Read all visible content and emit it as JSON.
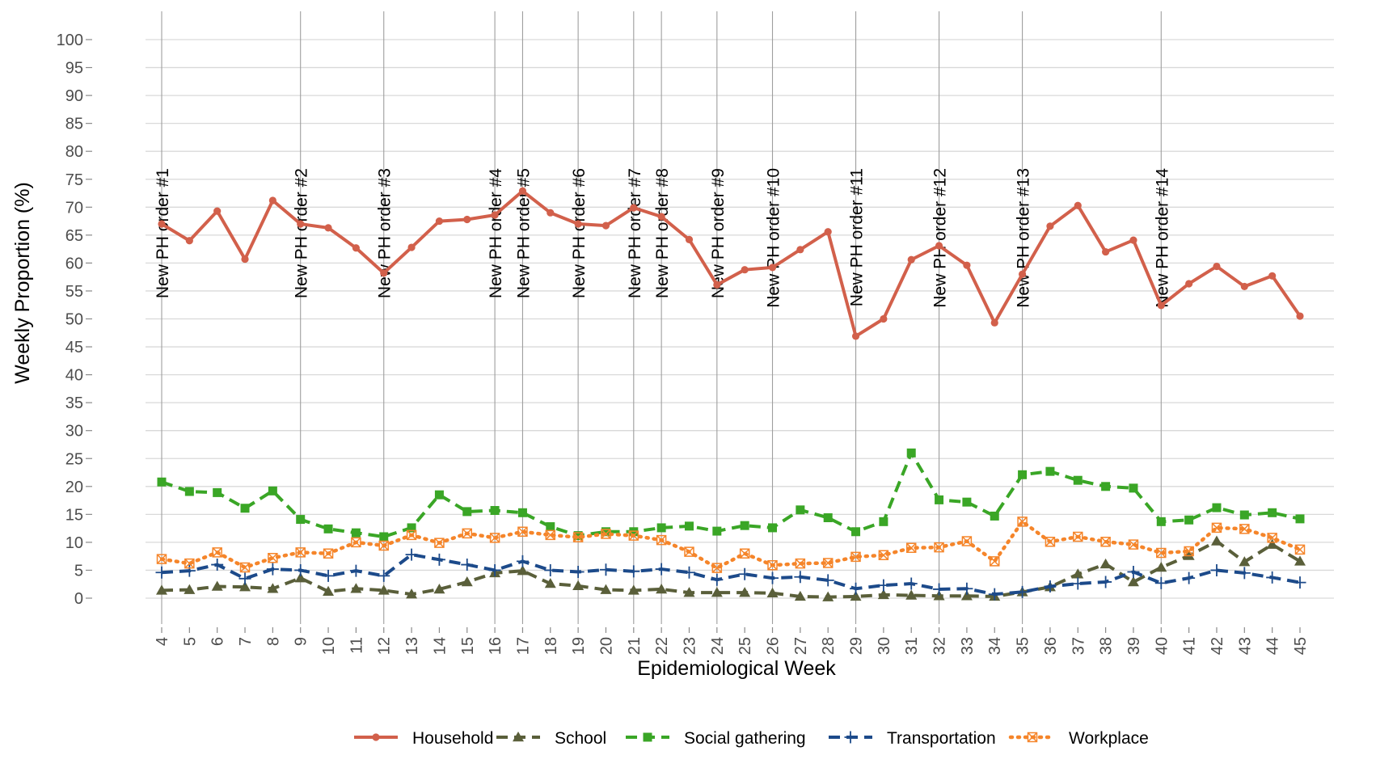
{
  "chart_data": {
    "type": "line",
    "title": "",
    "xlabel": "Epidemiological Week",
    "ylabel": "Weekly Proportion (%)",
    "x": [
      4,
      5,
      6,
      7,
      8,
      9,
      10,
      11,
      12,
      13,
      14,
      15,
      16,
      17,
      18,
      19,
      20,
      21,
      22,
      23,
      24,
      25,
      26,
      27,
      28,
      29,
      30,
      31,
      32,
      33,
      34,
      35,
      36,
      37,
      38,
      39,
      40,
      41,
      42,
      43,
      44,
      45
    ],
    "xlim": [
      4,
      45
    ],
    "ylim": [
      0,
      100
    ],
    "yticks": [
      0,
      5,
      10,
      15,
      20,
      25,
      30,
      35,
      40,
      45,
      50,
      55,
      60,
      65,
      70,
      75,
      80,
      85,
      90,
      95,
      100
    ],
    "grid": true,
    "legend_position": "bottom",
    "series": [
      {
        "name": "Household",
        "color": "#d2604b",
        "line_style": "solid",
        "marker": "circle",
        "values": [
          67,
          64,
          69.3,
          60.7,
          71.2,
          67,
          66.3,
          62.7,
          58.2,
          62.8,
          67.5,
          67.8,
          68.6,
          72.9,
          69,
          67,
          66.7,
          69.9,
          68.3,
          64.2,
          56.1,
          58.8,
          59.2,
          62.4,
          65.6,
          46.9,
          50,
          60.6,
          63.1,
          59.6,
          49.3,
          58,
          66.6,
          70.3,
          62,
          64.1,
          52.4,
          56.3,
          59.4,
          55.8,
          57.7,
          50.5
        ]
      },
      {
        "name": "School",
        "color": "#5a5f3a",
        "line_style": "dashed",
        "marker": "triangle",
        "values": [
          1.4,
          1.5,
          2.1,
          2,
          1.7,
          3.6,
          1.2,
          1.7,
          1.4,
          0.7,
          1.6,
          2.9,
          4.5,
          4.9,
          2.6,
          2.2,
          1.5,
          1.4,
          1.6,
          1,
          1,
          1,
          0.9,
          0.3,
          0.2,
          0.3,
          0.6,
          0.5,
          0.4,
          0.4,
          0.3,
          1.1,
          2,
          4.3,
          6.1,
          2.9,
          5.5,
          7.6,
          10.2,
          6.5,
          9.6,
          6.6
        ]
      },
      {
        "name": "Social gathering",
        "color": "#3aa626",
        "line_style": "dashed",
        "marker": "square",
        "values": [
          20.8,
          19.1,
          18.9,
          16.1,
          19.2,
          14.1,
          12.4,
          11.7,
          11,
          12.6,
          18.5,
          15.5,
          15.7,
          15.3,
          12.8,
          11.2,
          11.9,
          11.9,
          12.6,
          12.9,
          12,
          13,
          12.6,
          15.8,
          14.4,
          11.9,
          13.7,
          26,
          17.6,
          17.2,
          14.7,
          22.1,
          22.7,
          21.1,
          20,
          19.7,
          13.7,
          14,
          16.2,
          14.9,
          15.3,
          14.2
        ]
      },
      {
        "name": "Transportation",
        "color": "#1c4a8a",
        "line_style": "dashed",
        "marker": "plus",
        "values": [
          4.6,
          4.9,
          6,
          3.5,
          5.2,
          5,
          4,
          4.9,
          4,
          7.8,
          6.9,
          6,
          5,
          6.6,
          5,
          4.7,
          5.1,
          4.8,
          5.2,
          4.6,
          3.3,
          4.3,
          3.6,
          3.8,
          3.2,
          1.7,
          2.3,
          2.6,
          1.6,
          1.7,
          0.7,
          1.1,
          2.1,
          2.6,
          2.9,
          4.7,
          2.7,
          3.6,
          5,
          4.5,
          3.7,
          2.8
        ]
      },
      {
        "name": "Workplace",
        "color": "#f5852a",
        "line_style": "dotted",
        "marker": "square-x",
        "values": [
          7,
          6.2,
          8.2,
          5.5,
          7.2,
          8.2,
          8,
          10,
          9.4,
          11.3,
          9.9,
          11.6,
          10.8,
          11.9,
          11.3,
          10.9,
          11.5,
          11.2,
          10.4,
          8.3,
          5.4,
          8,
          5.9,
          6.2,
          6.3,
          7.4,
          7.7,
          9,
          9.1,
          10.2,
          6.6,
          13.7,
          10.1,
          11,
          10.1,
          9.6,
          8.1,
          8.4,
          12.6,
          12.4,
          10.8,
          8.7
        ]
      }
    ],
    "annotations": [
      {
        "week": 4,
        "label": "New PH order #1"
      },
      {
        "week": 9,
        "label": "New PH order #2"
      },
      {
        "week": 12,
        "label": "New PH order #3"
      },
      {
        "week": 16,
        "label": "New PH order #4"
      },
      {
        "week": 17,
        "label": "New PH order #5"
      },
      {
        "week": 19,
        "label": "New PH order #6"
      },
      {
        "week": 21,
        "label": "New PH order #7"
      },
      {
        "week": 22,
        "label": "New PH order #8"
      },
      {
        "week": 24,
        "label": "New PH order #9"
      },
      {
        "week": 26,
        "label": "New PH order #10"
      },
      {
        "week": 29,
        "label": "New PH order #11"
      },
      {
        "week": 32,
        "label": "New PH order #12"
      },
      {
        "week": 35,
        "label": "New PH order #13"
      },
      {
        "week": 40,
        "label": "New PH order #14"
      }
    ]
  }
}
